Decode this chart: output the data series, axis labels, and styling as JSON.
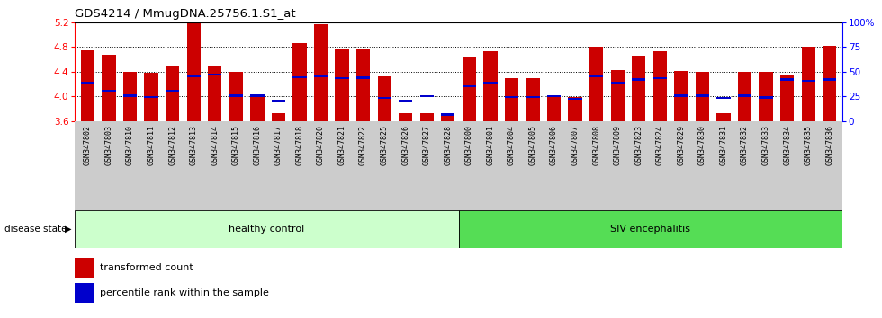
{
  "title": "GDS4214 / MmugDNA.25756.1.S1_at",
  "samples": [
    "GSM347802",
    "GSM347803",
    "GSM347810",
    "GSM347811",
    "GSM347812",
    "GSM347813",
    "GSM347814",
    "GSM347815",
    "GSM347816",
    "GSM347817",
    "GSM347818",
    "GSM347820",
    "GSM347821",
    "GSM347822",
    "GSM347825",
    "GSM347826",
    "GSM347827",
    "GSM347828",
    "GSM347800",
    "GSM347801",
    "GSM347804",
    "GSM347805",
    "GSM347806",
    "GSM347807",
    "GSM347808",
    "GSM347809",
    "GSM347823",
    "GSM347824",
    "GSM347829",
    "GSM347830",
    "GSM347831",
    "GSM347832",
    "GSM347833",
    "GSM347834",
    "GSM347835",
    "GSM347836"
  ],
  "bar_values": [
    4.74,
    4.67,
    4.39,
    4.38,
    4.5,
    5.19,
    4.5,
    4.4,
    3.98,
    3.72,
    4.86,
    5.17,
    4.77,
    4.77,
    4.32,
    3.72,
    3.72,
    3.7,
    4.65,
    4.73,
    4.29,
    4.29,
    4.01,
    3.98,
    4.8,
    4.43,
    4.66,
    4.73,
    4.41,
    4.39,
    3.73,
    4.39,
    4.4,
    4.34,
    4.8,
    4.82
  ],
  "percentile_values": [
    4.22,
    4.09,
    4.01,
    3.99,
    4.09,
    4.32,
    4.35,
    4.01,
    4.01,
    3.92,
    4.31,
    4.33,
    4.29,
    4.3,
    3.97,
    3.92,
    4.0,
    3.7,
    4.16,
    4.22,
    3.99,
    3.99,
    4.0,
    3.96,
    4.32,
    4.22,
    4.27,
    4.29,
    4.01,
    4.01,
    3.97,
    4.01,
    3.98,
    4.27,
    4.25,
    4.27
  ],
  "healthy_count": 18,
  "siv_count": 18,
  "ylim_left": [
    3.6,
    5.2
  ],
  "yticks_left": [
    3.6,
    4.0,
    4.4,
    4.8,
    5.2
  ],
  "ylim_right": [
    0,
    100
  ],
  "yticks_right": [
    0,
    25,
    50,
    75,
    100
  ],
  "bar_color": "#cc0000",
  "percentile_color": "#0000cc",
  "healthy_bg": "#ccffcc",
  "siv_bg": "#55dd55",
  "xticklabel_bg": "#cccccc"
}
